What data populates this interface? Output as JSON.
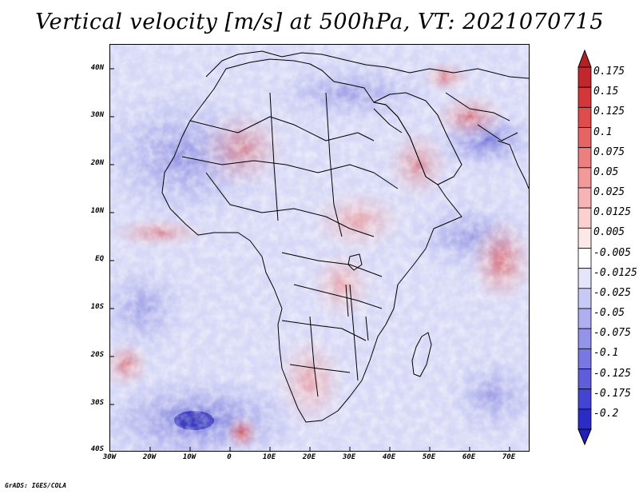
{
  "title": "Vertical velocity [m/s] at 500hPa, VT: 2021070715",
  "credit": "GrADS: IGES/COLA",
  "map": {
    "lat_labels": [
      "40N",
      "30N",
      "20N",
      "10N",
      "EQ",
      "10S",
      "20S",
      "30S",
      "40S"
    ],
    "lon_labels": [
      "30W",
      "20W",
      "10W",
      "0",
      "10E",
      "20E",
      "30E",
      "40E",
      "50E",
      "60E",
      "70E"
    ]
  },
  "colorbar": {
    "levels": [
      {
        "label": "0.175",
        "color": "#c1272d"
      },
      {
        "label": "0.15",
        "color": "#d2373a"
      },
      {
        "label": "0.125",
        "color": "#de4c4c"
      },
      {
        "label": "0.1",
        "color": "#e56565"
      },
      {
        "label": "0.075",
        "color": "#ec7f7f"
      },
      {
        "label": "0.05",
        "color": "#f29999"
      },
      {
        "label": "0.025",
        "color": "#f6b4b4"
      },
      {
        "label": "0.0125",
        "color": "#fad0d0"
      },
      {
        "label": "0.005",
        "color": "#fde8e8"
      },
      {
        "label": "-0.005",
        "color": "#ffffff"
      },
      {
        "label": "-0.0125",
        "color": "#e4e4fa"
      },
      {
        "label": "-0.025",
        "color": "#c9c9f5"
      },
      {
        "label": "-0.05",
        "color": "#aeaef0"
      },
      {
        "label": "-0.075",
        "color": "#9393ea"
      },
      {
        "label": "-0.1",
        "color": "#7878e3"
      },
      {
        "label": "-0.125",
        "color": "#5e5edb"
      },
      {
        "label": "-0.175",
        "color": "#4444d2"
      },
      {
        "label": "-0.2",
        "color": "#2b2bc6"
      }
    ],
    "top_color": "#b52025",
    "bottom_color": "#2020b8"
  }
}
